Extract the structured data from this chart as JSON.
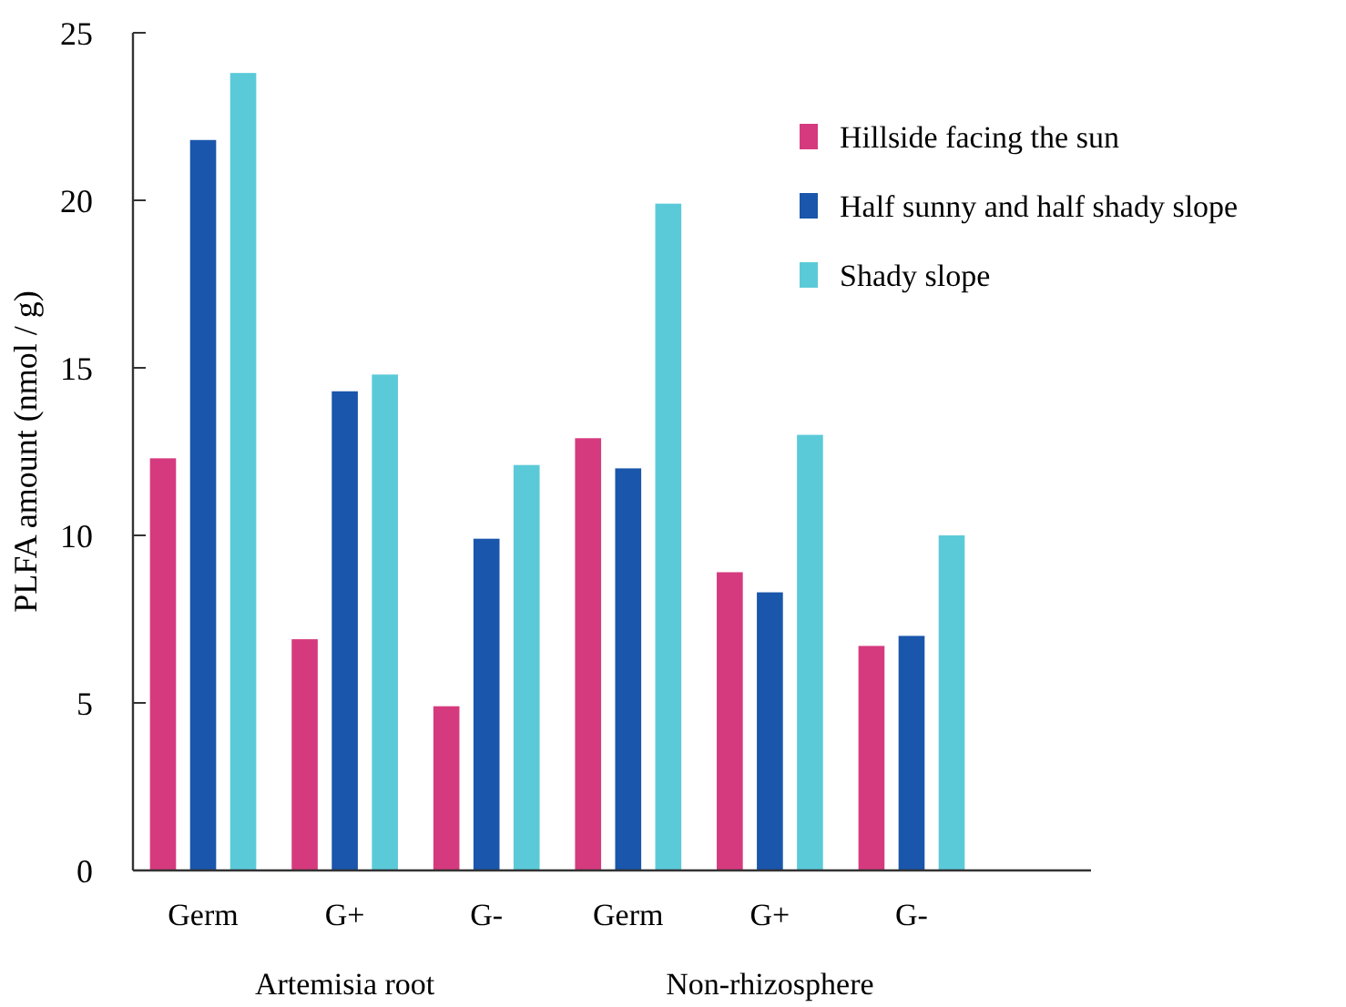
{
  "chart_data": {
    "type": "bar",
    "ylabel": "PLFA amount (nmol / g)",
    "categories": [
      "Germ",
      "G+",
      "G-",
      "Germ",
      "G+",
      "G-"
    ],
    "series": [
      {
        "name": "Hillside facing the sun",
        "color": "#d63a7e",
        "values": [
          12.3,
          6.9,
          4.9,
          12.9,
          8.9,
          6.7
        ]
      },
      {
        "name": "Half sunny and half shady slope",
        "color": "#1a56ab",
        "values": [
          21.8,
          14.3,
          9.9,
          12.0,
          8.3,
          7.0
        ]
      },
      {
        "name": "Shady slope",
        "color": "#5bcad8",
        "values": [
          23.8,
          14.8,
          12.1,
          19.9,
          13.0,
          10.0
        ]
      }
    ],
    "annotations": [
      "Artemisia root",
      "Non-rhizosphere"
    ],
    "ylim": [
      0,
      25
    ],
    "yticks": [
      0,
      5,
      10,
      15,
      20,
      25
    ],
    "grid": false,
    "legend": "top right"
  }
}
